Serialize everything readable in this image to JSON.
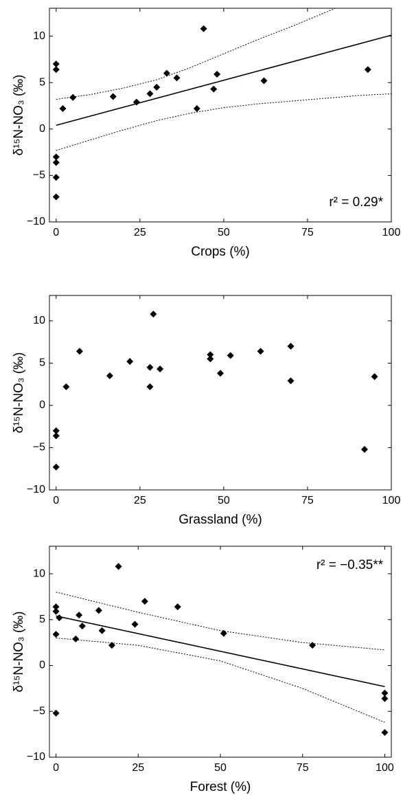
{
  "chart_data": [
    {
      "type": "scatter",
      "x_label": "Crops (%)",
      "y_label": "δ¹⁵N-NO₃ (‰)",
      "annotation": "r² = 0.29*",
      "color": "#000000",
      "x": [
        0,
        0,
        0,
        0,
        0,
        0,
        2,
        5,
        17,
        24,
        28,
        30,
        33,
        36,
        42,
        44,
        47,
        48,
        62,
        93
      ],
      "y": [
        7.0,
        6.4,
        -3.0,
        -3.6,
        -5.2,
        -7.3,
        2.2,
        3.4,
        3.5,
        2.9,
        3.8,
        4.5,
        6.0,
        5.5,
        2.2,
        10.8,
        4.3,
        5.9,
        5.2,
        6.4
      ],
      "fit_x": [
        0,
        100
      ],
      "fit_y": [
        0.4,
        10.1
      ],
      "band_x": [
        0,
        10,
        20,
        30,
        40,
        50,
        60,
        70,
        80,
        90,
        100
      ],
      "band_upper": [
        3.2,
        3.7,
        4.4,
        5.3,
        6.6,
        8.1,
        9.6,
        11.0,
        12.5,
        14.0,
        15.6
      ],
      "band_lower": [
        -2.3,
        -1.2,
        -0.1,
        0.9,
        1.7,
        2.3,
        2.7,
        3.0,
        3.3,
        3.6,
        3.8
      ],
      "xlim": [
        -2,
        100
      ],
      "ylim": [
        -10,
        13
      ],
      "xticks": [
        0,
        25,
        50,
        75,
        100
      ],
      "yticks": [
        {
          "value": -10,
          "label": "−10"
        },
        {
          "value": -5,
          "label": "−5"
        },
        0,
        5,
        10
      ]
    },
    {
      "type": "scatter",
      "x_label": "Grassland (%)",
      "y_label": "δ¹⁵N-NO₃ (‰)",
      "color": "#000000",
      "x": [
        0,
        0,
        0,
        3,
        7,
        16,
        22,
        28,
        28,
        29,
        31,
        46,
        46,
        49,
        52,
        61,
        70,
        70,
        92,
        95
      ],
      "y": [
        -3.0,
        -3.6,
        -7.3,
        2.2,
        6.4,
        3.5,
        5.2,
        4.5,
        2.2,
        10.8,
        4.3,
        5.5,
        6.0,
        3.8,
        5.9,
        6.4,
        7.0,
        2.9,
        -5.2,
        3.4
      ],
      "xlim": [
        -2,
        100
      ],
      "ylim": [
        -10,
        13
      ],
      "xticks": [
        0,
        25,
        50,
        75,
        100
      ],
      "yticks": [
        {
          "value": -10,
          "label": "−10"
        },
        {
          "value": -5,
          "label": "−5"
        },
        0,
        5,
        10
      ]
    },
    {
      "type": "scatter",
      "x_label": "Forest (%)",
      "y_label": "δ¹⁵N-NO₃ (‰)",
      "annotation": "r² = −0.35**",
      "color": "#000000",
      "x": [
        0,
        0,
        0,
        0,
        1,
        6,
        7,
        8,
        13,
        14,
        17,
        19,
        24,
        27,
        37,
        51,
        78,
        100,
        100,
        100
      ],
      "y": [
        6.4,
        5.9,
        3.4,
        -5.2,
        5.2,
        2.9,
        5.5,
        4.3,
        6.0,
        3.8,
        2.2,
        10.8,
        4.5,
        7.0,
        6.4,
        3.5,
        2.2,
        -3.0,
        -3.6,
        -7.3
      ],
      "fit_x": [
        0,
        100
      ],
      "fit_y": [
        5.4,
        -2.3
      ],
      "band_x": [
        0,
        25,
        50,
        75,
        100
      ],
      "band_upper": [
        8.0,
        5.8,
        3.8,
        2.5,
        1.7
      ],
      "band_lower": [
        3.0,
        2.2,
        0.5,
        -2.5,
        -6.2
      ],
      "xlim": [
        -2,
        102
      ],
      "ylim": [
        -10,
        13
      ],
      "xticks": [
        0,
        25,
        50,
        75,
        100
      ],
      "yticks": [
        {
          "value": -10,
          "label": "−10"
        },
        {
          "value": -5,
          "label": "−5"
        },
        0,
        5,
        10
      ]
    }
  ]
}
